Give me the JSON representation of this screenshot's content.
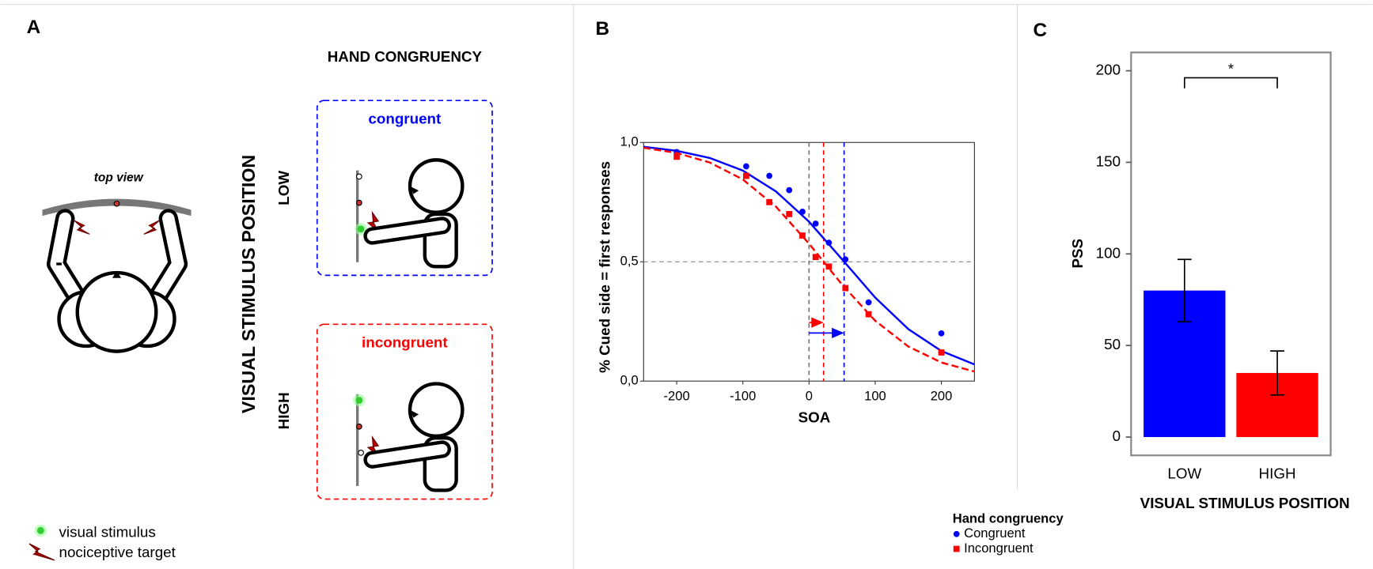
{
  "diagram": {
    "label": "A",
    "top_view": "top view",
    "column_header": "HAND CONGRUENCY",
    "row_header": "VISUAL STIMULUS POSITION",
    "rows": [
      "LOW",
      "HIGH"
    ],
    "conditions": [
      "congruent",
      "incongruent"
    ],
    "legend": [
      "visual stimulus",
      "nociceptive target"
    ]
  },
  "chart_data": [
    {
      "type": "scatter",
      "label": "B",
      "x_label": "SOA",
      "y_label": "% Cued side = first responses",
      "xlim": [
        -250,
        250
      ],
      "ylim": [
        0,
        1
      ],
      "xticks": [
        -200,
        -100,
        0,
        100,
        200
      ],
      "yticks": [
        {
          "value": 0,
          "label": "0,0"
        },
        {
          "value": 0.5,
          "label": "0,5"
        },
        {
          "value": 1,
          "label": "1,0"
        }
      ],
      "legend_title": "Hand congruency",
      "series": [
        {
          "name": "Congruent",
          "color": "#0000ff",
          "marker": "circle",
          "dashed": false,
          "x": [
            -200,
            -95,
            -60,
            -30,
            -10,
            10,
            30,
            55,
            90,
            200
          ],
          "values": [
            0.96,
            0.9,
            0.86,
            0.8,
            0.71,
            0.66,
            0.58,
            0.51,
            0.33,
            0.2
          ],
          "fit_x": [
            -250,
            -200,
            -150,
            -100,
            -50,
            0,
            50,
            100,
            150,
            200,
            250
          ],
          "fit_values": [
            0.982,
            0.965,
            0.935,
            0.882,
            0.795,
            0.668,
            0.51,
            0.35,
            0.218,
            0.126,
            0.07
          ]
        },
        {
          "name": "Incongruent",
          "color": "#ff0000",
          "marker": "square",
          "dashed": true,
          "x": [
            -200,
            -95,
            -60,
            -30,
            -10,
            10,
            30,
            55,
            90,
            200
          ],
          "values": [
            0.94,
            0.86,
            0.75,
            0.7,
            0.61,
            0.52,
            0.48,
            0.39,
            0.28,
            0.12
          ],
          "fit_x": [
            -250,
            -200,
            -150,
            -100,
            -50,
            0,
            50,
            100,
            150,
            200,
            250
          ],
          "fit_values": [
            0.978,
            0.956,
            0.916,
            0.845,
            0.731,
            0.576,
            0.404,
            0.253,
            0.145,
            0.078,
            0.04
          ]
        }
      ],
      "vlines": [
        {
          "value": 0,
          "color": "#777777"
        },
        {
          "value": 22,
          "color": "#ff0000"
        },
        {
          "value": 53,
          "color": "#0000ff"
        }
      ],
      "hlines": [
        {
          "value": 0.5,
          "color": "#777777"
        }
      ]
    },
    {
      "type": "bar",
      "label": "C",
      "x_label": "VISUAL STIMULUS POSITION",
      "y_label": "PSS",
      "categories": [
        "LOW",
        "HIGH"
      ],
      "values": [
        80,
        35
      ],
      "errors": [
        17,
        12
      ],
      "colors": [
        "#0000ff",
        "#ff0000"
      ],
      "ylim": [
        -10,
        210
      ],
      "yticks": [
        0,
        50,
        100,
        150,
        200
      ],
      "annotation": "*"
    }
  ]
}
